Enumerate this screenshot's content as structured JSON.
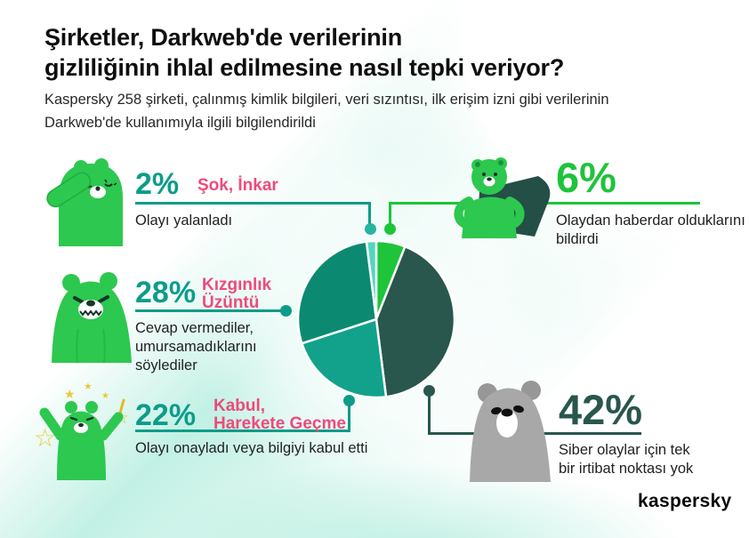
{
  "colors": {
    "accent_teal": "#0d9c89",
    "accent_pink": "#ed4b7a",
    "accent_green": "#1ec43a",
    "accent_dark": "#29564d",
    "background_mint": "#86e2ca",
    "bear_green": "#2dc84f",
    "bear_gray": "#a8a8a8"
  },
  "header": {
    "title_line1": "Şirketler, Darkweb'de verilerinin",
    "title_line2": "gizliliğinin ihlal edilmesine nasıl tepki veriyor?",
    "subtitle_line1": "Kaspersky 258 şirketi, çalınmış kimlik bilgileri, veri sızıntısı, ilk erişim izni gibi verilerinin",
    "subtitle_line2": "Darkweb'de kullanımıyla ilgili bilgilendirildi"
  },
  "sections": {
    "shock": {
      "pct": "2%",
      "tag": "Şok, İnkar",
      "desc": "Olayı yalanladı"
    },
    "aware": {
      "pct": "6%",
      "desc_line1": "Olaydan haberdar olduklarını",
      "desc_line2": "bildirdi"
    },
    "anger": {
      "pct": "28%",
      "tag_line1": "Kızgınlık",
      "tag_line2": "Üzüntü",
      "desc_line1": "Cevap vermediler,",
      "desc_line2": "umursamadıklarını",
      "desc_line3": "söylediler"
    },
    "accept": {
      "pct": "22%",
      "tag_line1": "Kabul,",
      "tag_line2": "Harekete Geçme",
      "desc": "Olayı onayladı veya bilgiyi kabul etti"
    },
    "nocontact": {
      "pct": "42%",
      "desc_line1": "Siber olaylar için tek",
      "desc_line2": "bir irtibat noktası yok"
    }
  },
  "footer": {
    "logo": "kaspersky"
  },
  "chart_data": {
    "type": "pie",
    "title": "Şirketler, Darkweb'de verilerinin gizliliğinin ihlal edilmesine nasıl tepki veriyor?",
    "keys": [
      "aware",
      "nocontact",
      "accept",
      "anger",
      "shock"
    ],
    "labels": [
      "Olaydan haberdar olduklarını bildirdi",
      "Siber olaylar için tek bir irtibat noktası yok",
      "Kabul, Harekete Geçme — Olayı onayladı veya bilgiyi kabul etti",
      "Kızgınlık, Üzüntü — Cevap vermediler, umursamadıklarını söylediler",
      "Şok, İnkar — Olayı yalanladı"
    ],
    "values": [
      6,
      42,
      22,
      28,
      2
    ],
    "colors": [
      "#1ec43a",
      "#29564d",
      "#12a28c",
      "#0b8a71",
      "#55d5bf"
    ],
    "start_angle_deg": 0,
    "direction": "clockwise",
    "legend_position": "none",
    "grid": false
  }
}
